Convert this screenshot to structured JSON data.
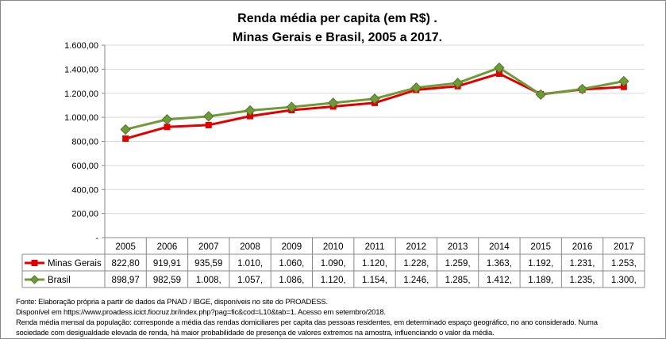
{
  "chart_data": {
    "type": "line",
    "title": [
      "Renda média per capita (em R$) .",
      "Minas Gerais e Brasil, 2005 a 2017."
    ],
    "categories": [
      "2005",
      "2006",
      "2007",
      "2008",
      "2009",
      "2010",
      "2011",
      "2012",
      "2013",
      "2014",
      "2015",
      "2016",
      "2017"
    ],
    "ylim": [
      0,
      1600
    ],
    "yticks": [
      0,
      200,
      400,
      600,
      800,
      1000,
      1200,
      1400,
      1600
    ],
    "ytick_labels": [
      "-",
      "200,00",
      "400,00",
      "600,00",
      "800,00",
      "1.000,00",
      "1.200,00",
      "1.400,00",
      "1.600,00"
    ],
    "grid": "horizontal",
    "legend": "data-table",
    "series": [
      {
        "name": "Minas Gerais",
        "color": "#e00000",
        "marker": "square",
        "values": [
          822.8,
          919.91,
          935.59,
          1010,
          1060,
          1090,
          1120,
          1228,
          1259,
          1363,
          1192,
          1231,
          1253
        ],
        "labels": [
          "822,80",
          "919,91",
          "935,59",
          "1.010,",
          "1.060,",
          "1.090,",
          "1.120,",
          "1.228,",
          "1.259,",
          "1.363,",
          "1.192,",
          "1.231,",
          "1.253,"
        ]
      },
      {
        "name": "Brasil",
        "color": "#6e9a3a",
        "marker": "diamond",
        "values": [
          898.97,
          982.59,
          1008,
          1057,
          1086,
          1120,
          1154,
          1246,
          1285,
          1412,
          1189,
          1235,
          1300
        ],
        "labels": [
          "898,97",
          "982,59",
          "1.008,",
          "1.057,",
          "1.086,",
          "1.120,",
          "1.154,",
          "1.246,",
          "1.285,",
          "1.412,",
          "1.189,",
          "1.235,",
          "1.300,"
        ]
      }
    ]
  },
  "footnotes": [
    "Fonte: Elaboração própria a partir de dados da PNAD / IBGE, disponíveis no site do PROADESS.",
    "Disponível em https://www.proadess.icict.fiocruz.br/index.php?pag=fic&cod=L10&tab=1. Acesso em setembro/2018.",
    "Renda média mensal da população: corresponde a média das rendas domiciliares per capita das pessoas residentes, em determinado espaço geográfico, no ano considerado. Numa",
    "sociedade com desigualdade elevada de renda, há maior probabilidade de presença de valores extremos na amostra, influenciando o valor da média."
  ]
}
